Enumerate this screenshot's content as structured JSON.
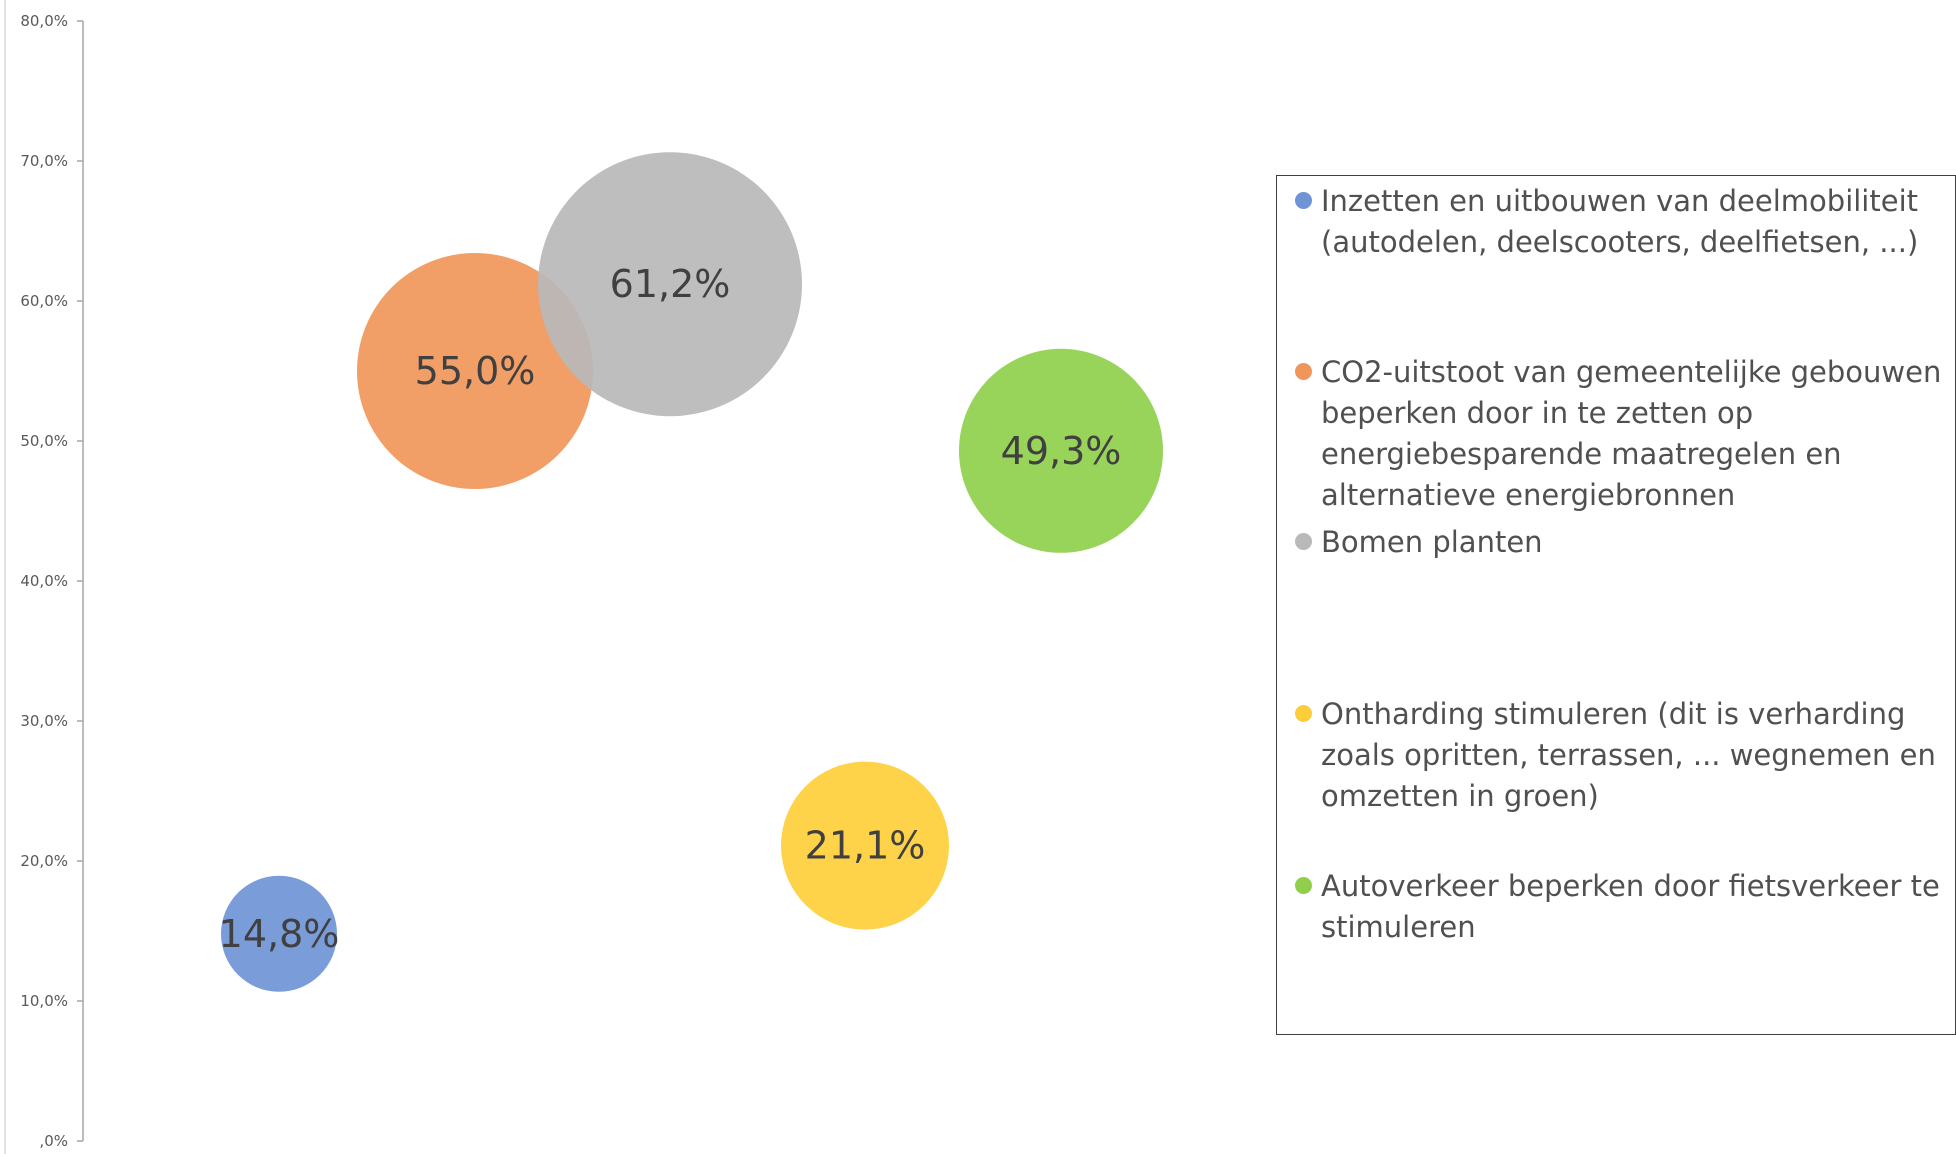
{
  "chart_data": {
    "type": "bubble",
    "title": "",
    "xlabel": "",
    "ylabel": "",
    "ylim": [
      0,
      80
    ],
    "y_ticks": [
      0,
      10,
      20,
      30,
      40,
      50,
      60,
      70,
      80
    ],
    "y_tick_labels": [
      ",0%",
      "10,0%",
      "20,0%",
      "30,0%",
      "40,0%",
      "50,0%",
      "60,0%",
      "70,0%",
      "80,0%"
    ],
    "grid": false,
    "legend_position": "right",
    "series": [
      {
        "name": "Inzetten en uitbouwen van deelmobiliteit (autodelen, deelscooters, deelfietsen, ...)",
        "value": 14.8,
        "label": "14,8%",
        "color": "#6f94d6",
        "x": 1
      },
      {
        "name": "CO2-uitstoot van gemeentelijke gebouwen beperken door in te zetten op energiebesparende maatregelen en alternatieve energiebronnen",
        "value": 55.0,
        "label": "55,0%",
        "color": "#f0965a",
        "x": 2
      },
      {
        "name": "Bomen planten",
        "value": 61.2,
        "label": "61,2%",
        "color": "#b9b9b9",
        "x": 3
      },
      {
        "name": "Ontharding stimuleren (dit is verharding zoals opritten, terrassen, ... wegnemen en omzetten in groen)",
        "value": 21.1,
        "label": "21,1%",
        "color": "#fece3a",
        "x": 4
      },
      {
        "name": "Autoverkeer beperken door fietsverkeer te stimuleren",
        "value": 49.3,
        "label": "49,3%",
        "color": "#8fcf4c",
        "x": 5
      }
    ]
  }
}
